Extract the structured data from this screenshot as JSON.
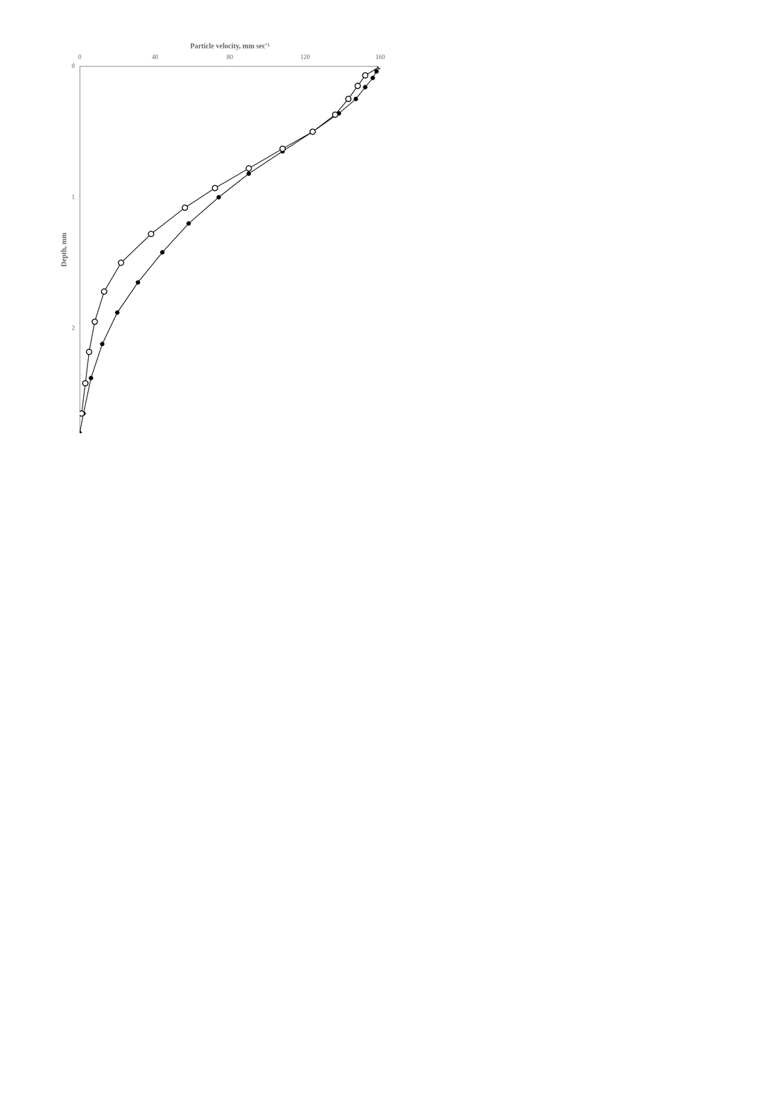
{
  "chart_data": {
    "type": "line",
    "xlabel": "Particle velocity, mm sec⁻¹",
    "ylabel": "Depth, mm",
    "xlim": [
      0,
      160
    ],
    "xticks": [
      0,
      40,
      80,
      120,
      160
    ],
    "ylim": [
      2.8,
      0
    ],
    "yticks": [
      0,
      1,
      2
    ],
    "grid": false,
    "series": [
      {
        "color": "#000000",
        "marker": "circle_open",
        "x": [
          160,
          152,
          148,
          143,
          136,
          124,
          108,
          90,
          72,
          56,
          38,
          22,
          13,
          8,
          5,
          3,
          1
        ],
        "values": [
          0.0,
          0.07,
          0.15,
          0.25,
          0.37,
          0.5,
          0.63,
          0.78,
          0.93,
          1.08,
          1.28,
          1.5,
          1.72,
          1.95,
          2.18,
          2.42,
          2.65
        ]
      },
      {
        "color": "#000000",
        "marker": "circle",
        "x": [
          160,
          158,
          156,
          152,
          147,
          138,
          124,
          108,
          90,
          74,
          58,
          44,
          31,
          20,
          12,
          6,
          2,
          0
        ],
        "values": [
          0.0,
          0.04,
          0.09,
          0.16,
          0.25,
          0.36,
          0.5,
          0.65,
          0.82,
          1.0,
          1.2,
          1.42,
          1.65,
          1.88,
          2.12,
          2.38,
          2.65,
          2.8
        ]
      }
    ]
  }
}
